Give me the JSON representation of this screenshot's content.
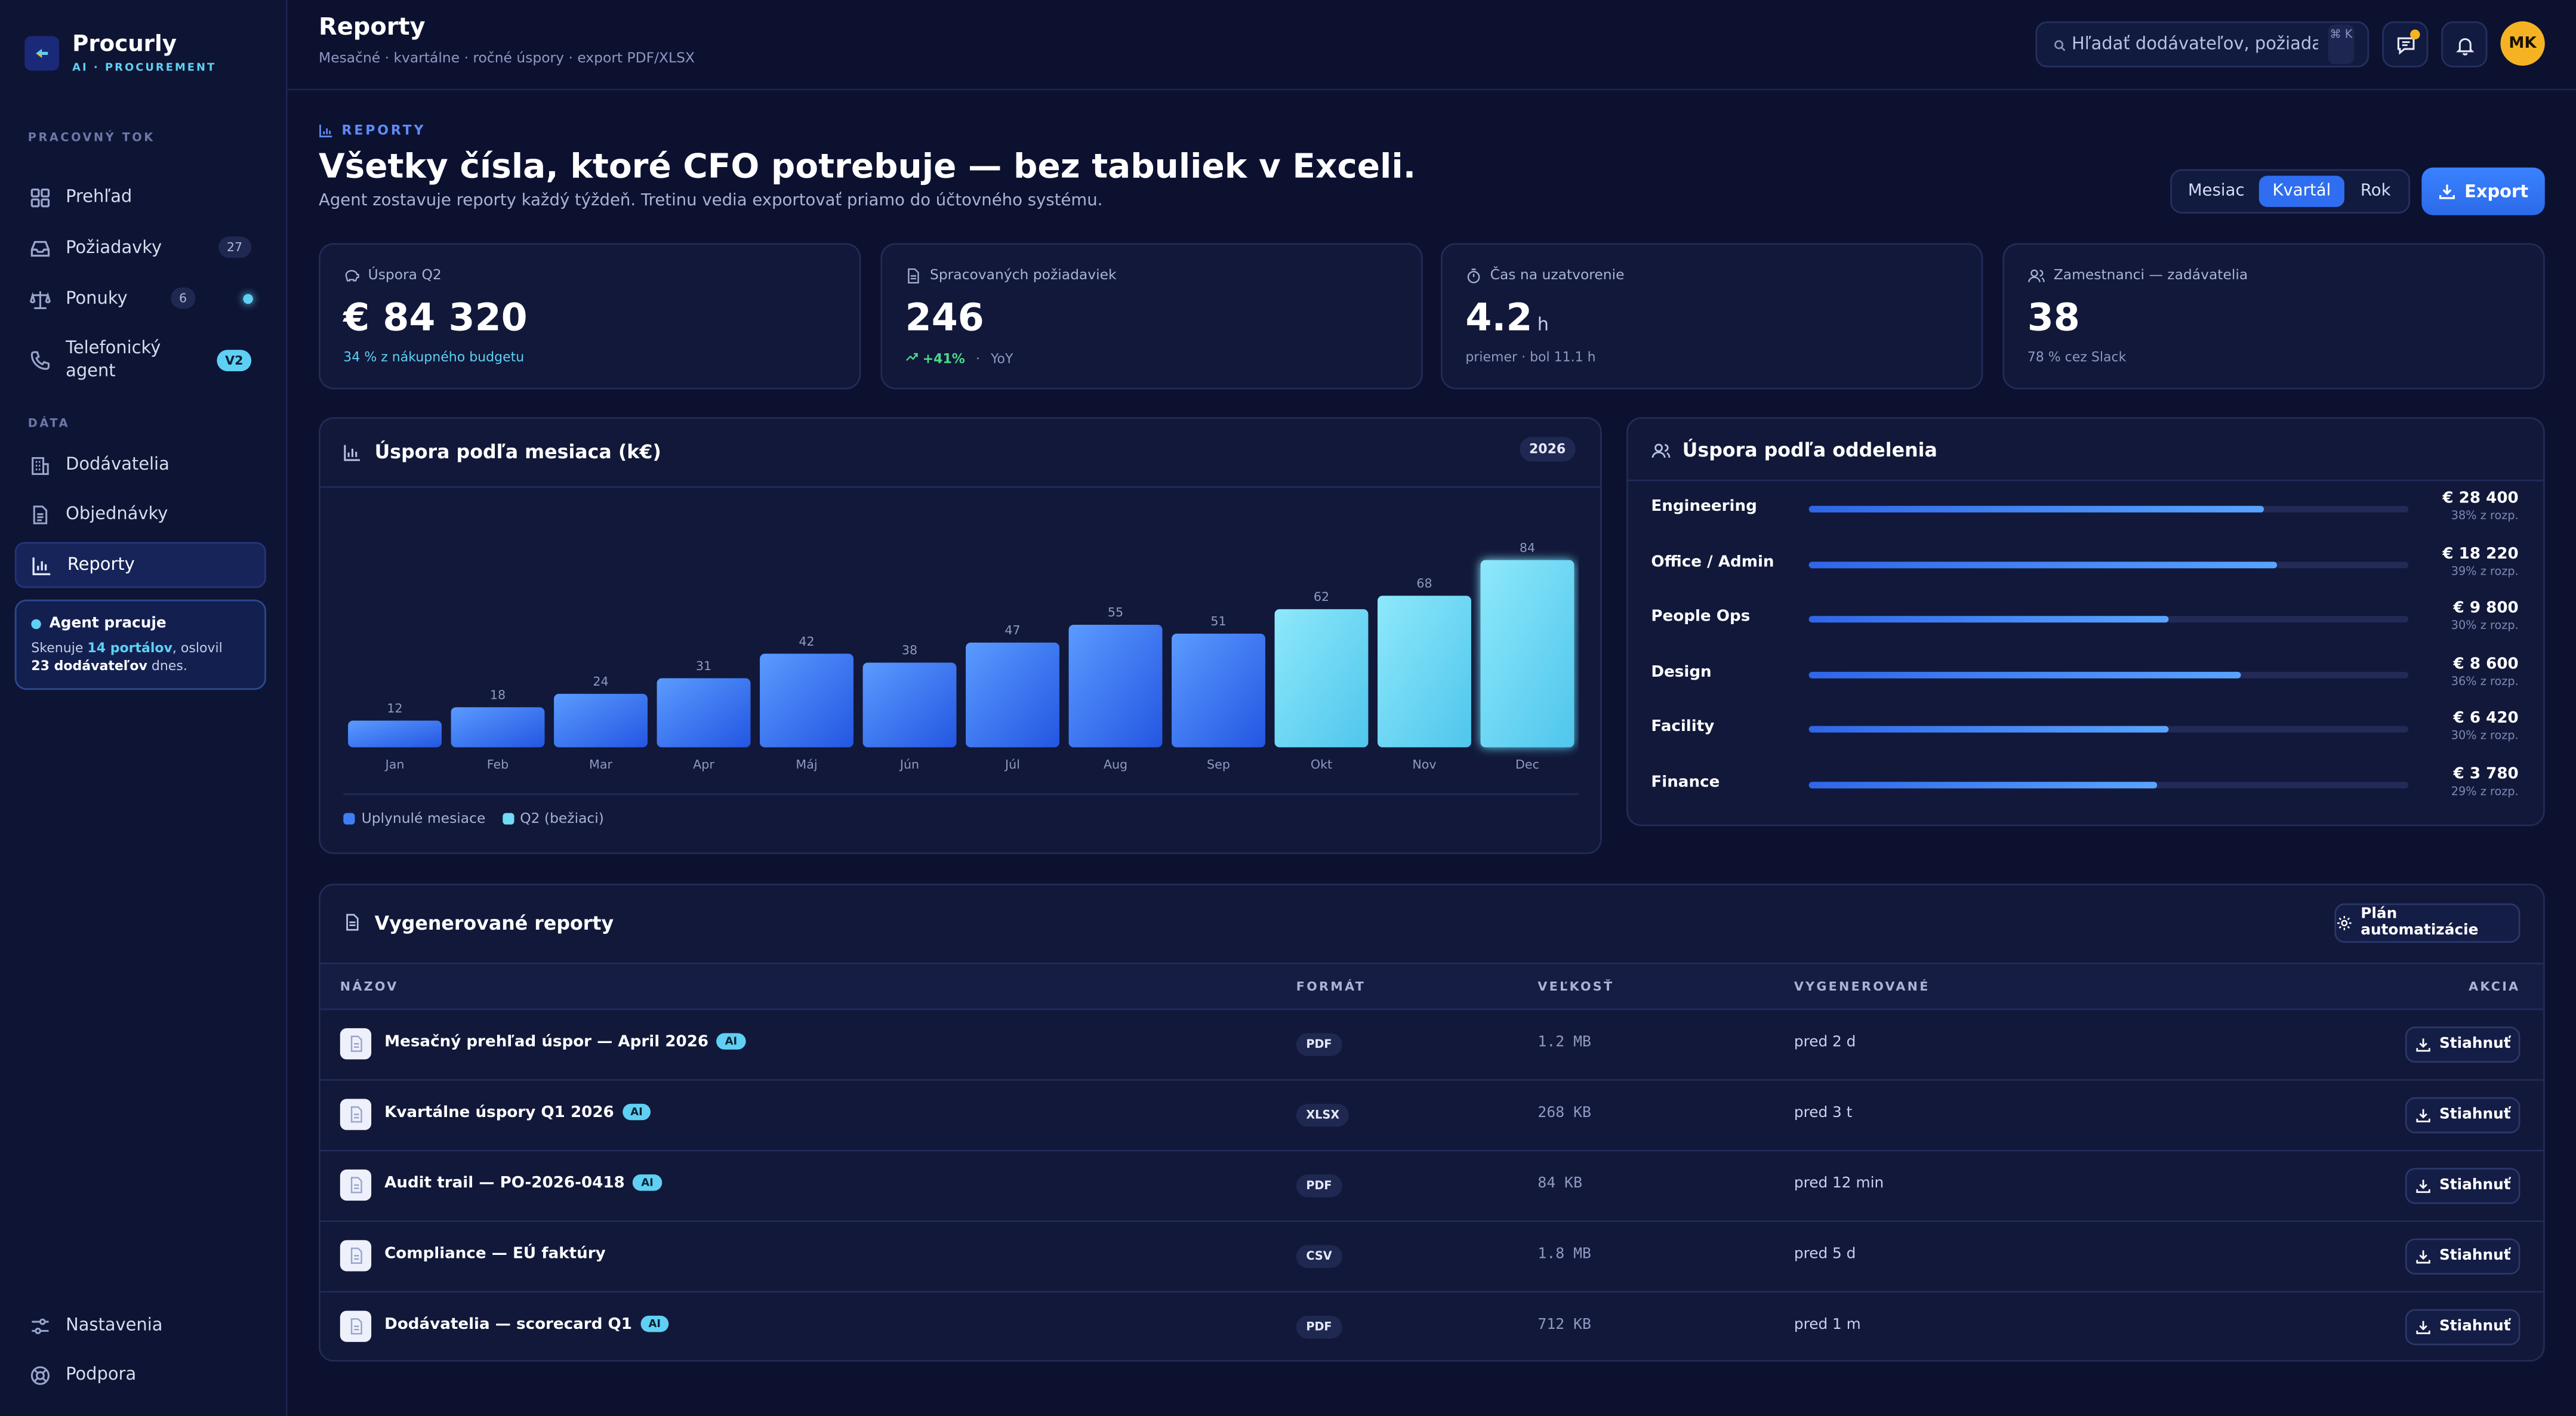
{
  "brand": {
    "name": "Procurly",
    "tagline": "AI · PROCUREMENT"
  },
  "sidebar": {
    "section_workflow": "PRACOVNÝ TOK",
    "section_data": "DÁTA",
    "items": [
      {
        "label": "Prehľad",
        "icon": "dashboard-icon"
      },
      {
        "label": "Požiadavky",
        "icon": "inbox-icon",
        "badge": "27"
      },
      {
        "label": "Ponuky",
        "icon": "scale-icon",
        "badge": "6",
        "status_dot": true
      },
      {
        "label": "Telefonický agent",
        "icon": "phone-icon",
        "badge": "V2"
      },
      {
        "label": "Dodávatelia",
        "icon": "building-icon"
      },
      {
        "label": "Objednávky",
        "icon": "document-icon"
      },
      {
        "label": "Reporty",
        "icon": "bar-chart-icon",
        "active": true
      }
    ],
    "footer": [
      {
        "label": "Nastavenia",
        "icon": "settings-icon"
      },
      {
        "label": "Podpora",
        "icon": "support-icon"
      }
    ],
    "agent": {
      "title": "Agent pracuje",
      "line1_a": "Skenuje ",
      "line1_b": "14 portálov",
      "line1_c": ", oslovil",
      "line2_a": "23 dodávateľov",
      "line2_b": " dnes."
    }
  },
  "header": {
    "title": "Reporty",
    "subtitle": "Mesačné · kvartálne · ročné úspory · export PDF/XLSX",
    "search_placeholder": "Hľadať dodávateľov, požiadavky, …",
    "kbd": "⌘ K",
    "avatar": "MK"
  },
  "hero": {
    "eyebrow": "REPORTY",
    "title": "Všetky čísla, ktoré CFO potrebuje — bez tabuliek v Exceli.",
    "subtitle": "Agent zostavuje reporty každý týždeň. Tretinu vedia exportovať priamo do účtovného systému.",
    "periods": [
      "Mesiac",
      "Kvartál",
      "Rok"
    ],
    "active_period": "Kvartál",
    "export_label": "Export"
  },
  "kpis": [
    {
      "label": "Úspora Q2",
      "value": "€ 84 320",
      "unit": "",
      "note": "34 % z nákupného budgetu",
      "icon": "piggy-bank-icon"
    },
    {
      "label": "Spracovaných požiadaviek",
      "value": "246",
      "unit": "",
      "trend": "+41%",
      "note": "YoY",
      "icon": "file-icon"
    },
    {
      "label": "Čas na uzatvorenie",
      "value": "4.2",
      "unit": "h",
      "note": "priemer · bol 11.1 h",
      "icon": "stopwatch-icon"
    },
    {
      "label": "Zamestnanci — zadávatelia",
      "value": "38",
      "unit": "",
      "note": "78 % cez Slack",
      "icon": "users-icon"
    }
  ],
  "chart_data": {
    "type": "bar",
    "title": "Úspora podľa mesiaca (k€)",
    "year_badge": "2026",
    "categories": [
      "Jan",
      "Feb",
      "Mar",
      "Apr",
      "Máj",
      "Jún",
      "Júl",
      "Aug",
      "Sep",
      "Okt",
      "Nov",
      "Dec"
    ],
    "values": [
      12,
      18,
      24,
      31,
      42,
      38,
      47,
      55,
      51,
      62,
      68,
      84
    ],
    "ylim": [
      0,
      84
    ],
    "grid": false,
    "legend": [
      {
        "name": "Uplynulé mesiace",
        "color": "#3f7ff5"
      },
      {
        "name": "Q2 (bežiaci)",
        "color": "#6fdcf6"
      }
    ],
    "highlight_from_index": 9,
    "colors": {
      "past": "#3f7ff5",
      "current": "#6fdcf6"
    }
  },
  "departments": {
    "title": "Úspora podľa oddelenia",
    "rows": [
      {
        "name": "Engineering",
        "value": "€ 28 400",
        "pct": "38% z rozp.",
        "share": 0.76
      },
      {
        "name": "Office / Admin",
        "value": "€ 18 220",
        "pct": "39% z rozp.",
        "share": 0.78
      },
      {
        "name": "People Ops",
        "value": "€ 9 800",
        "pct": "30% z rozp.",
        "share": 0.6
      },
      {
        "name": "Design",
        "value": "€ 8 600",
        "pct": "36% z rozp.",
        "share": 0.72
      },
      {
        "name": "Facility",
        "value": "€ 6 420",
        "pct": "30% z rozp.",
        "share": 0.6
      },
      {
        "name": "Finance",
        "value": "€ 3 780",
        "pct": "29% z rozp.",
        "share": 0.58
      }
    ]
  },
  "reports": {
    "title": "Vygenerované reporty",
    "plan_label": "Plán automatizácie",
    "columns": [
      "NÁZOV",
      "FORMÁT",
      "VEĽKOSŤ",
      "VYGENEROVANÉ",
      "AKCIA"
    ],
    "download_label": "Stiahnuť",
    "ai_label": "AI",
    "rows": [
      {
        "name": "Mesačný prehľad úspor — April 2026",
        "ai": true,
        "format": "PDF",
        "size": "1.2 MB",
        "generated": "pred 2 d"
      },
      {
        "name": "Kvartálne úspory Q1 2026",
        "ai": true,
        "format": "XLSX",
        "size": "268 KB",
        "generated": "pred 3 t"
      },
      {
        "name": "Audit trail — PO-2026-0418",
        "ai": true,
        "format": "PDF",
        "size": "84 KB",
        "generated": "pred 12 min"
      },
      {
        "name": "Compliance — EÚ faktúry",
        "ai": false,
        "format": "CSV",
        "size": "1.8 MB",
        "generated": "pred 5 d"
      },
      {
        "name": "Dodávatelia — scorecard Q1",
        "ai": true,
        "format": "PDF",
        "size": "712 KB",
        "generated": "pred 1 m"
      }
    ]
  }
}
